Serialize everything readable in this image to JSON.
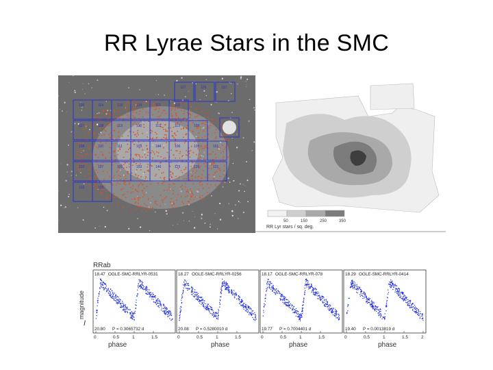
{
  "title": "RR Lyrae Stars in the SMC",
  "sky_map": {
    "field_labels": [
      "127",
      "129",
      "137",
      "106",
      "114",
      "118",
      "124",
      "115",
      "116",
      "117",
      "128",
      "119",
      "120",
      "112",
      "113",
      "109",
      "108",
      "110",
      "111",
      "103",
      "104",
      "106",
      "105",
      "101",
      "102",
      "107",
      "100",
      "103",
      "140",
      "125",
      "126",
      "121",
      "122",
      "123"
    ],
    "colors": {
      "background": "#6c6c6c",
      "field_border": "#2430d8",
      "star_dots": "#e0501c"
    }
  },
  "density_map": {
    "legend_ticks": [
      "50",
      "150",
      "250",
      "350"
    ],
    "legend_caption": "RR Lyr  stars / sq. deg.",
    "colors": {
      "level1": "#cfcfcf",
      "level2": "#a9a9a9",
      "level3": "#7c7c7c",
      "level4": "#3e3e3e",
      "empty": "#f2f2f2"
    }
  },
  "lightcurves": {
    "header": "RRab",
    "ylabel_i": "I",
    "ylabel_word": "magnitude",
    "xlabel": "phase",
    "dot_color": "#1f2fe0",
    "x_ticks": [
      "0",
      "0.5",
      "1",
      "1.5"
    ],
    "last_x_ticks": [
      "0",
      "0.5",
      "1",
      "1.5",
      "2"
    ],
    "panels": [
      {
        "id": "OGLE-SMC-RRLYR-0531",
        "top_mag": "18.47",
        "bottom_mag": "20.80",
        "period": "P = 0.3065732 d"
      },
      {
        "id": "OGLE-SMC-RRLYR-0256",
        "top_mag": "18.27",
        "bottom_mag": "20.08",
        "period": "P = 0.5280010 d"
      },
      {
        "id": "OGLE-SMC-RRLYR-078",
        "top_mag": "18.17",
        "bottom_mag": "19.77",
        "period": "P = 0.7004401 d"
      },
      {
        "id": "OGLE-SMC-RRLYR-0414",
        "top_mag": "18.29",
        "bottom_mag": "19.40",
        "period": "P = 0.0013819 d"
      }
    ]
  }
}
